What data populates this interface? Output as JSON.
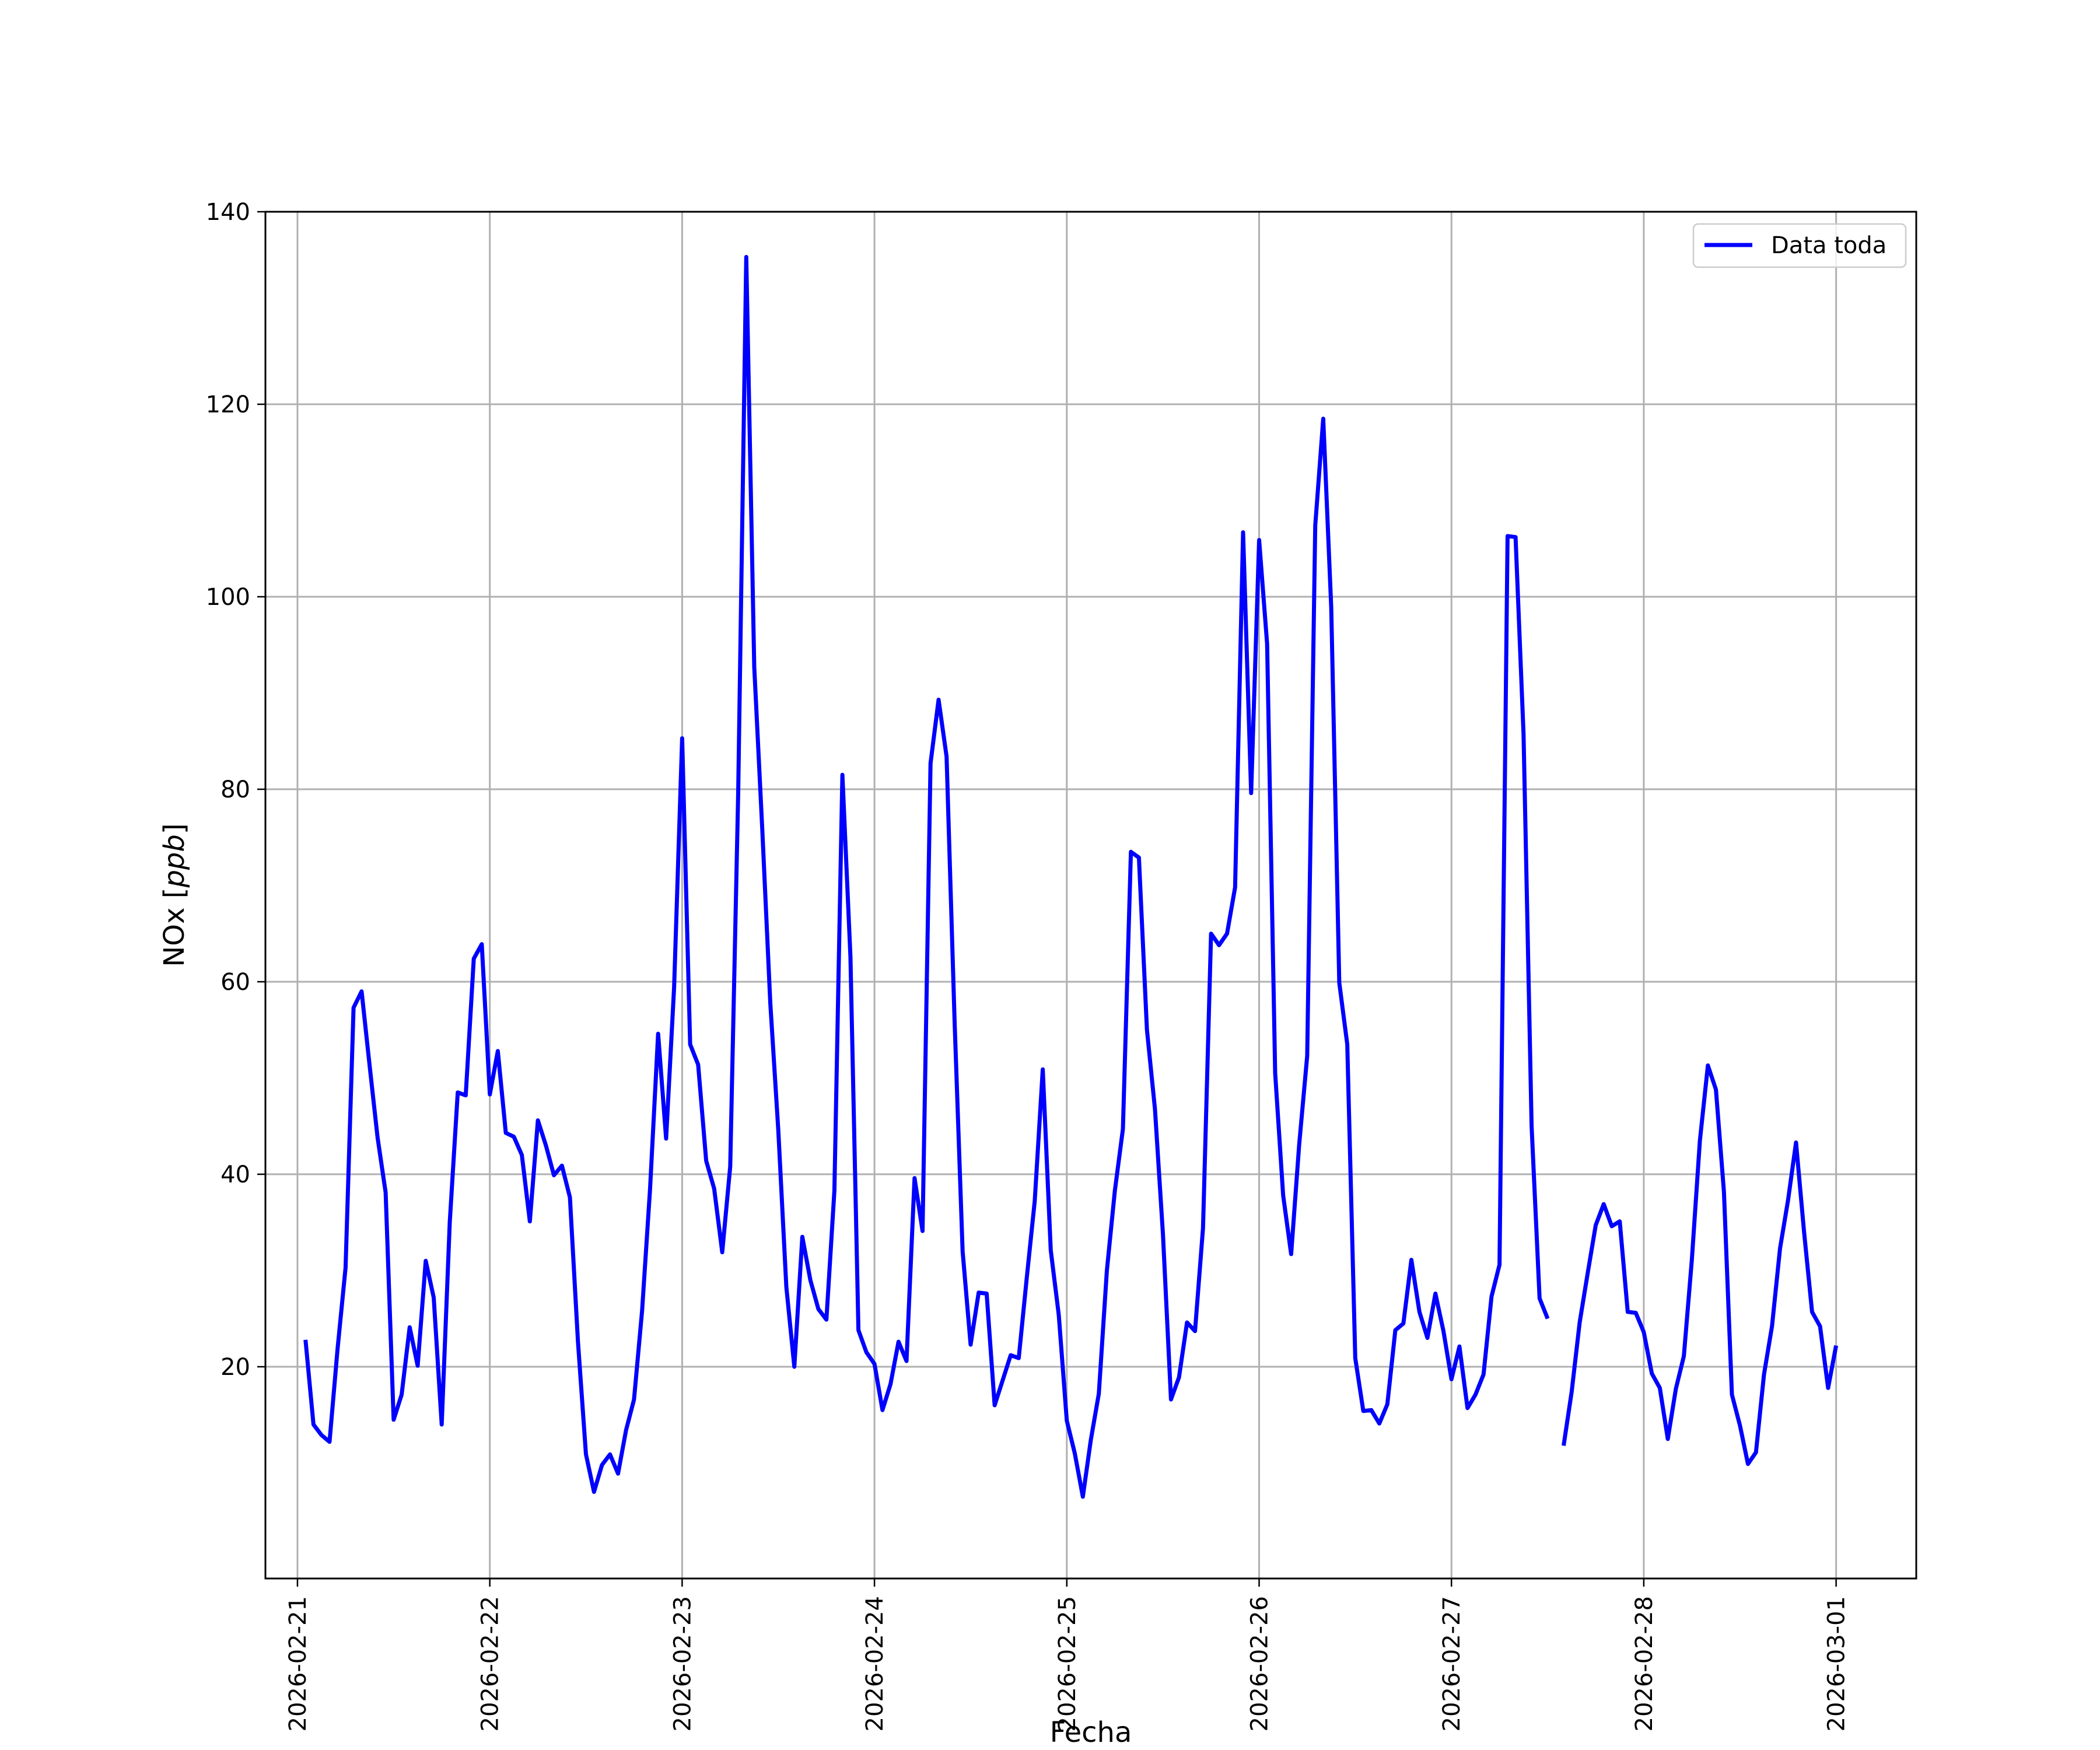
{
  "chart_data": {
    "type": "line",
    "xlabel": "Fecha",
    "ylabel": "NOx [ppb]",
    "ylabel_main": "NOx [",
    "ylabel_unit": "ppb",
    "ylabel_close": "]",
    "x_range": [
      "2026-02-20T20:00",
      "2026-03-01T10:00"
    ],
    "ylim": [
      -2,
      140
    ],
    "grid": true,
    "legend_position": "top-right",
    "line_color": "#0000ff",
    "x_ticks": [
      "2026-02-21",
      "2026-02-22",
      "2026-02-23",
      "2026-02-24",
      "2026-02-25",
      "2026-02-26",
      "2026-02-27",
      "2026-02-28",
      "2026-03-01"
    ],
    "y_ticks": [
      "20",
      "40",
      "60",
      "80",
      "100",
      "120",
      "140"
    ],
    "series": [
      {
        "name": "Data toda",
        "segments": [
          {
            "x": [
              "2026-02-21T01:00",
              "2026-02-21T02:00",
              "2026-02-21T03:00",
              "2026-02-21T04:00",
              "2026-02-21T05:00",
              "2026-02-21T06:00",
              "2026-02-21T07:00",
              "2026-02-21T08:00",
              "2026-02-21T09:00",
              "2026-02-21T10:00",
              "2026-02-21T11:00",
              "2026-02-21T12:00",
              "2026-02-21T13:00",
              "2026-02-21T14:00",
              "2026-02-21T15:00",
              "2026-02-21T16:00",
              "2026-02-21T17:00",
              "2026-02-21T18:00",
              "2026-02-21T19:00",
              "2026-02-21T20:00",
              "2026-02-21T21:00",
              "2026-02-21T22:00",
              "2026-02-21T23:00",
              "2026-02-22T00:00",
              "2026-02-22T01:00",
              "2026-02-22T02:00",
              "2026-02-22T03:00",
              "2026-02-22T04:00",
              "2026-02-22T05:00",
              "2026-02-22T06:00",
              "2026-02-22T07:00",
              "2026-02-22T08:00",
              "2026-02-22T09:00",
              "2026-02-22T10:00",
              "2026-02-22T11:00",
              "2026-02-22T12:00",
              "2026-02-22T13:00",
              "2026-02-22T14:00",
              "2026-02-22T15:00",
              "2026-02-22T16:00",
              "2026-02-22T17:00",
              "2026-02-22T18:00",
              "2026-02-22T19:00",
              "2026-02-22T20:00",
              "2026-02-22T21:00",
              "2026-02-22T22:00",
              "2026-02-22T23:00",
              "2026-02-23T00:00",
              "2026-02-23T01:00",
              "2026-02-23T02:00",
              "2026-02-23T03:00",
              "2026-02-23T04:00",
              "2026-02-23T05:00",
              "2026-02-23T06:00",
              "2026-02-23T07:00",
              "2026-02-23T08:00",
              "2026-02-23T09:00",
              "2026-02-23T10:00",
              "2026-02-23T11:00",
              "2026-02-23T12:00",
              "2026-02-23T13:00",
              "2026-02-23T14:00",
              "2026-02-23T15:00",
              "2026-02-23T16:00",
              "2026-02-23T17:00",
              "2026-02-23T18:00",
              "2026-02-23T19:00",
              "2026-02-23T20:00",
              "2026-02-23T21:00",
              "2026-02-23T22:00",
              "2026-02-23T23:00",
              "2026-02-24T00:00",
              "2026-02-24T01:00",
              "2026-02-24T02:00",
              "2026-02-24T03:00",
              "2026-02-24T04:00",
              "2026-02-24T05:00",
              "2026-02-24T06:00",
              "2026-02-24T07:00",
              "2026-02-24T08:00",
              "2026-02-24T09:00",
              "2026-02-24T10:00",
              "2026-02-24T11:00",
              "2026-02-24T12:00",
              "2026-02-24T13:00",
              "2026-02-24T14:00",
              "2026-02-24T15:00",
              "2026-02-24T16:00",
              "2026-02-24T17:00",
              "2026-02-24T18:00",
              "2026-02-24T19:00",
              "2026-02-24T20:00",
              "2026-02-24T21:00",
              "2026-02-24T22:00",
              "2026-02-24T23:00",
              "2026-02-25T00:00",
              "2026-02-25T01:00",
              "2026-02-25T02:00",
              "2026-02-25T03:00",
              "2026-02-25T04:00",
              "2026-02-25T05:00",
              "2026-02-25T06:00",
              "2026-02-25T07:00",
              "2026-02-25T08:00",
              "2026-02-25T09:00",
              "2026-02-25T10:00",
              "2026-02-25T11:00",
              "2026-02-25T12:00",
              "2026-02-25T13:00",
              "2026-02-25T14:00",
              "2026-02-25T15:00",
              "2026-02-25T16:00",
              "2026-02-25T17:00",
              "2026-02-25T18:00",
              "2026-02-25T19:00",
              "2026-02-25T20:00",
              "2026-02-25T21:00",
              "2026-02-25T22:00",
              "2026-02-25T23:00",
              "2026-02-26T00:00",
              "2026-02-26T01:00",
              "2026-02-26T02:00",
              "2026-02-26T03:00",
              "2026-02-26T04:00",
              "2026-02-26T05:00",
              "2026-02-26T06:00",
              "2026-02-26T07:00",
              "2026-02-26T08:00",
              "2026-02-26T09:00",
              "2026-02-26T10:00",
              "2026-02-26T11:00",
              "2026-02-26T12:00",
              "2026-02-26T13:00",
              "2026-02-26T14:00",
              "2026-02-26T15:00",
              "2026-02-26T16:00",
              "2026-02-26T17:00",
              "2026-02-26T18:00",
              "2026-02-26T19:00",
              "2026-02-26T20:00",
              "2026-02-26T21:00",
              "2026-02-26T22:00",
              "2026-02-26T23:00",
              "2026-02-27T00:00",
              "2026-02-27T01:00",
              "2026-02-27T02:00",
              "2026-02-27T03:00",
              "2026-02-27T04:00",
              "2026-02-27T05:00",
              "2026-02-27T06:00",
              "2026-02-27T07:00",
              "2026-02-27T08:00",
              "2026-02-27T09:00",
              "2026-02-27T10:00",
              "2026-02-27T11:00",
              "2026-02-27T12:00"
            ],
            "y": [
              22.8,
              14.0,
              12.9,
              12.2,
              21.8,
              30.3,
              57.3,
              59.0,
              51.3,
              43.8,
              38.1,
              14.5,
              17.1,
              24.1,
              20.1,
              31.0,
              27.2,
              14.0,
              35.0,
              48.5,
              48.2,
              62.4,
              63.9,
              48.3,
              52.8,
              44.3,
              43.9,
              42.0,
              35.1,
              45.6,
              43.0,
              39.9,
              40.9,
              37.6,
              22.6,
              10.9,
              7.0,
              9.8,
              10.9,
              8.9,
              13.4,
              16.6,
              25.8,
              38.5,
              54.6,
              43.7,
              59.4,
              85.3,
              53.5,
              51.4,
              41.4,
              38.5,
              31.9,
              40.8,
              79.7,
              135.3,
              92.7,
              75.9,
              57.8,
              44.6,
              28.3,
              20.0,
              33.5,
              29.0,
              26.0,
              24.9,
              38.3,
              81.5,
              62.6,
              23.8,
              21.5,
              20.3,
              15.5,
              18.2,
              22.6,
              20.6,
              39.6,
              34.1,
              82.7,
              89.3,
              83.4,
              55.8,
              32.0,
              22.3,
              27.7,
              27.6,
              16.0,
              18.6,
              21.2,
              20.9,
              29.2,
              37.2,
              50.9,
              32.1,
              25.4,
              14.4,
              11.0,
              6.5,
              12.4,
              17.2,
              30.0,
              38.3,
              44.7,
              73.5,
              72.9,
              55.0,
              46.8,
              33.8,
              16.6,
              18.9,
              24.6,
              23.7,
              34.4,
              65.0,
              63.8,
              65.0,
              69.8,
              106.7,
              79.6,
              105.9,
              95.1,
              50.5,
              37.8,
              31.7,
              43.1,
              52.3,
              107.4,
              118.5,
              98.9,
              59.9,
              53.5,
              20.9,
              15.4,
              15.5,
              14.1,
              16.1,
              23.8,
              24.5,
              31.1,
              25.7,
              23.0,
              27.6,
              23.7,
              18.7,
              22.1,
              15.7,
              17.1,
              19.2,
              27.3,
              30.6,
              106.3,
              106.2,
              85.7,
              45.0,
              27.1,
              25.0
            ]
          },
          {
            "x": [
              "2026-02-27T14:00",
              "2026-02-27T15:00",
              "2026-02-27T16:00",
              "2026-02-27T17:00",
              "2026-02-27T18:00",
              "2026-02-27T19:00",
              "2026-02-27T20:00",
              "2026-02-27T21:00",
              "2026-02-27T22:00",
              "2026-02-27T23:00",
              "2026-02-28T00:00",
              "2026-02-28T01:00",
              "2026-02-28T02:00",
              "2026-02-28T03:00",
              "2026-02-28T04:00",
              "2026-02-28T05:00",
              "2026-02-28T06:00",
              "2026-02-28T07:00",
              "2026-02-28T08:00",
              "2026-02-28T09:00",
              "2026-02-28T10:00",
              "2026-02-28T11:00",
              "2026-02-28T12:00",
              "2026-02-28T13:00",
              "2026-02-28T14:00",
              "2026-02-28T15:00",
              "2026-02-28T16:00",
              "2026-02-28T17:00",
              "2026-02-28T18:00",
              "2026-02-28T19:00",
              "2026-02-28T20:00",
              "2026-02-28T21:00",
              "2026-02-28T22:00",
              "2026-02-28T23:00",
              "2026-03-01T00:00"
            ],
            "y": [
              11.8,
              17.4,
              24.6,
              29.7,
              34.7,
              36.9,
              34.6,
              35.1,
              25.7,
              25.6,
              23.6,
              19.3,
              17.8,
              12.5,
              17.7,
              21.1,
              31.1,
              43.5,
              51.3,
              48.8,
              38.2,
              17.1,
              13.9,
              9.9,
              11.1,
              19.2,
              24.2,
              32.3,
              37.3,
              43.3,
              34.0,
              25.7,
              24.2,
              17.8,
              22.2
            ]
          }
        ]
      }
    ]
  }
}
